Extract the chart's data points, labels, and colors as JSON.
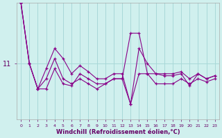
{
  "background_color": "#d0f0ee",
  "grid_color": "#a8d8d8",
  "line_color": "#880088",
  "hours": [
    0,
    1,
    2,
    3,
    4,
    5,
    6,
    7,
    8,
    9,
    10,
    11,
    12,
    13,
    14,
    15,
    16,
    17,
    18,
    19,
    20,
    21,
    22,
    23
  ],
  "series": [
    [
      5.0,
      11.0,
      13.5,
      13.5,
      11.5,
      13.0,
      13.2,
      12.0,
      12.5,
      13.0,
      13.0,
      12.5,
      12.5,
      15.0,
      9.5,
      11.0,
      12.0,
      12.2,
      12.2,
      12.0,
      13.2,
      12.0,
      12.5,
      12.2
    ],
    [
      5.0,
      11.0,
      13.5,
      11.5,
      9.5,
      10.5,
      12.0,
      11.2,
      11.8,
      12.5,
      12.5,
      12.0,
      12.0,
      15.0,
      12.0,
      12.0,
      12.0,
      12.0,
      12.0,
      11.8,
      12.5,
      12.0,
      12.5,
      12.2
    ],
    [
      5.0,
      11.0,
      13.5,
      12.5,
      10.5,
      12.5,
      13.0,
      12.5,
      13.0,
      13.5,
      13.0,
      12.5,
      12.5,
      8.0,
      8.0,
      12.0,
      13.0,
      13.0,
      13.0,
      12.5,
      13.0,
      12.5,
      12.8,
      12.5
    ]
  ],
  "xlabel": "Windchill (Refroidissement éolien,°C)",
  "ytick_value": 11.0,
  "ytick_label": "11",
  "ylim": [
    5.0,
    16.5
  ],
  "xlim": [
    -0.5,
    23.5
  ],
  "invert_yaxis": true
}
